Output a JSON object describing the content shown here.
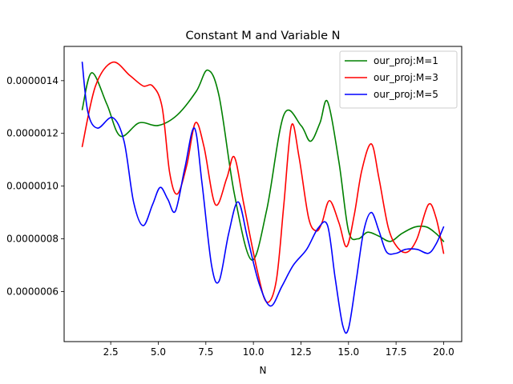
{
  "chart_data": {
    "type": "line",
    "title": "Constant M and Variable N",
    "xlabel": "N",
    "ylabel": "",
    "xlim": [
      0.05,
      20.95
    ],
    "ylim": [
      4.1e-07,
      1.53e-06
    ],
    "xticks": [
      2.5,
      5.0,
      7.5,
      10.0,
      12.5,
      15.0,
      17.5,
      20.0
    ],
    "xtick_labels": [
      "2.5",
      "5.0",
      "7.5",
      "10.0",
      "12.5",
      "15.0",
      "17.5",
      "20.0"
    ],
    "yticks": [
      6e-07,
      8e-07,
      1e-06,
      1.2e-06,
      1.4e-06
    ],
    "ytick_labels": [
      "0.0000006",
      "0.0000008",
      "0.0000010",
      "0.0000012",
      "0.0000014"
    ],
    "legend_position": "upper right",
    "grid": false,
    "series": [
      {
        "name": "our_proj:M=1",
        "color": "#008000",
        "x": [
          1.0,
          1.5,
          2.3,
          3.0,
          4.0,
          5.0,
          6.0,
          7.0,
          7.6,
          8.2,
          9.0,
          9.9,
          10.7,
          11.6,
          12.5,
          13.0,
          13.5,
          13.9,
          14.5,
          15.0,
          15.5,
          16.0,
          16.6,
          17.2,
          17.8,
          18.5,
          19.1,
          19.6,
          20.0
        ],
        "y": [
          1.29e-06,
          1.43e-06,
          1.31e-06,
          1.19e-06,
          1.24e-06,
          1.23e-06,
          1.27e-06,
          1.36e-06,
          1.44e-06,
          1.34e-06,
          9.7e-07,
          7.2e-07,
          9.1e-07,
          1.27e-06,
          1.23e-06,
          1.17e-06,
          1.24e-06,
          1.32e-06,
          1.09e-06,
          8.3e-07,
          8e-07,
          8.25e-07,
          8.1e-07,
          7.9e-07,
          8.2e-07,
          8.45e-07,
          8.45e-07,
          8.2e-07,
          7.9e-07
        ]
      },
      {
        "name": "our_proj:M=3",
        "color": "#ff0000",
        "x": [
          1.0,
          1.7,
          2.6,
          3.5,
          4.2,
          4.7,
          5.2,
          5.6,
          6.0,
          6.5,
          6.95,
          7.4,
          8.0,
          8.6,
          9.0,
          9.5,
          10.2,
          10.7,
          11.2,
          11.6,
          12.0,
          12.4,
          12.9,
          13.3,
          13.6,
          14.0,
          14.5,
          14.9,
          15.3,
          15.7,
          16.2,
          16.6,
          17.1,
          17.6,
          18.1,
          18.6,
          19.2,
          19.6,
          20.0
        ],
        "y": [
          1.15e-06,
          1.38e-06,
          1.47e-06,
          1.42e-06,
          1.38e-06,
          1.38e-06,
          1.3e-06,
          1.05e-06,
          9.7e-07,
          1.08e-06,
          1.24e-06,
          1.15e-06,
          9.3e-07,
          1.03e-06,
          1.11e-06,
          9.3e-07,
          6.8e-07,
          5.6e-07,
          6.4e-07,
          9.3e-07,
          1.23e-06,
          1.11e-06,
          8.8e-07,
          8.3e-07,
          8.6e-07,
          9.45e-07,
          8.6e-07,
          7.7e-07,
          8.9e-07,
          1.06e-06,
          1.16e-06,
          1.03e-06,
          8.4e-07,
          7.65e-07,
          7.5e-07,
          8e-07,
          9.3e-07,
          8.8e-07,
          7.45e-07
        ]
      },
      {
        "name": "our_proj:M=5",
        "color": "#0000ff",
        "x": [
          1.0,
          1.3,
          1.8,
          2.6,
          3.2,
          3.7,
          4.2,
          4.7,
          5.1,
          5.5,
          5.9,
          6.4,
          6.9,
          7.3,
          7.8,
          8.2,
          8.7,
          9.2,
          9.7,
          10.3,
          10.9,
          11.5,
          12.1,
          12.8,
          13.4,
          13.9,
          14.3,
          14.7,
          15.0,
          15.4,
          15.8,
          16.2,
          16.6,
          17.0,
          17.5,
          18.0,
          18.6,
          19.2,
          19.6,
          20.0
        ],
        "y": [
          1.47e-06,
          1.28e-06,
          1.22e-06,
          1.26e-06,
          1.17e-06,
          9.4e-07,
          8.5e-07,
          9.3e-07,
          9.95e-07,
          9.5e-07,
          9.05e-07,
          1.07e-06,
          1.22e-06,
          1.01e-06,
          7e-07,
          6.4e-07,
          8.2e-07,
          9.4e-07,
          8e-07,
          6.3e-07,
          5.45e-07,
          6.2e-07,
          7e-07,
          7.6e-07,
          8.4e-07,
          8.5e-07,
          6.5e-07,
          4.7e-07,
          4.6e-07,
          6.4e-07,
          8.3e-07,
          9e-07,
          8.3e-07,
          7.5e-07,
          7.45e-07,
          7.6e-07,
          7.6e-07,
          7.45e-07,
          7.8e-07,
          8.45e-07
        ]
      }
    ]
  }
}
